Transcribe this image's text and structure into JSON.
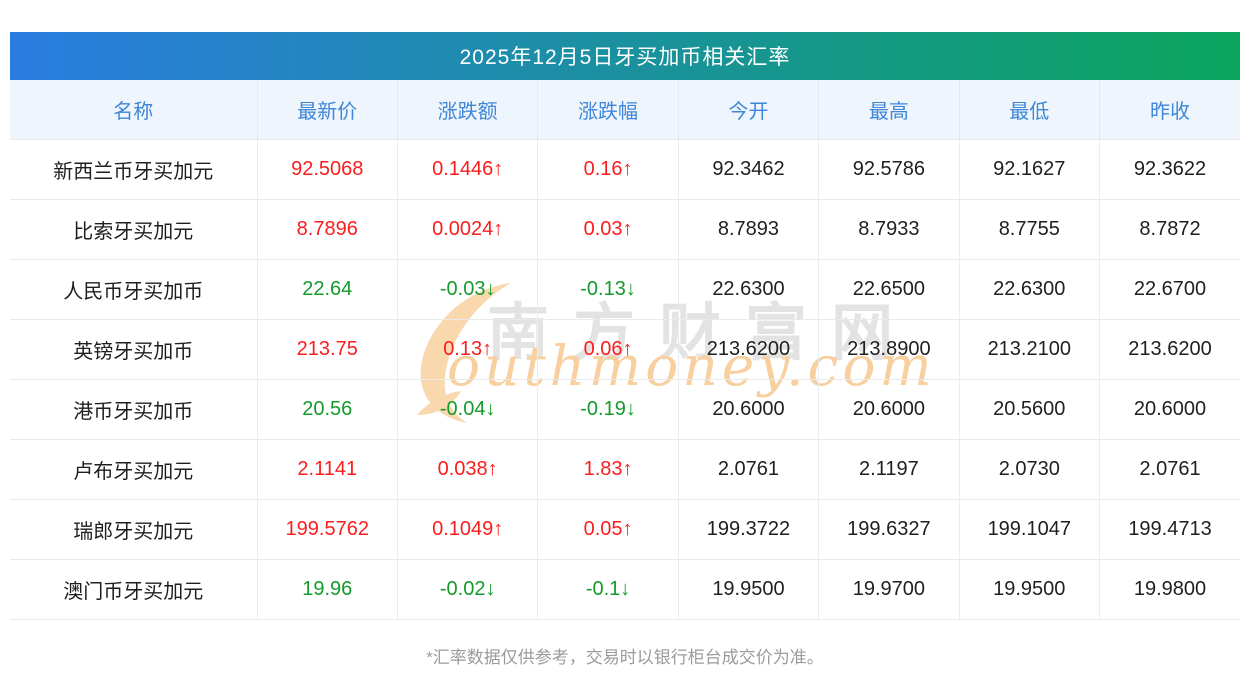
{
  "page": {
    "title": "2025年12月5日牙买加币相关汇率",
    "footnote": "*汇率数据仅供参考，交易时以银行柜台成交价为准。"
  },
  "watermark": {
    "brand_cn": "南方财富网",
    "brand_en": "outhmoney.com",
    "icon": "southmoney-s-swoosh"
  },
  "colors": {
    "up": "#fa1d1d",
    "down": "#149b2b",
    "header_text": "#3e87d8",
    "header_bg": "#eff5fc",
    "title_gradient_left": "#2b7ce1",
    "title_gradient_right": "#0aa55c",
    "watermark_orange": "#f8d8ac",
    "watermark_gray": "#e3e3e3"
  },
  "chart_data": {
    "type": "table",
    "title": "2025年12月5日牙买加币相关汇率",
    "columns": [
      "名称",
      "最新价",
      "涨跌额",
      "涨跌幅",
      "今开",
      "最高",
      "最低",
      "昨收"
    ],
    "rows": [
      {
        "name": "新西兰币牙买加元",
        "dir": "up",
        "last": "92.5068",
        "change": "0.1446↑",
        "pct": "0.16↑",
        "open": "92.3462",
        "high": "92.5786",
        "low": "92.1627",
        "prev": "92.3622"
      },
      {
        "name": "比索牙买加元",
        "dir": "up",
        "last": "8.7896",
        "change": "0.0024↑",
        "pct": "0.03↑",
        "open": "8.7893",
        "high": "8.7933",
        "low": "8.7755",
        "prev": "8.7872"
      },
      {
        "name": "人民币牙买加币",
        "dir": "down",
        "last": "22.64",
        "change": "-0.03↓",
        "pct": "-0.13↓",
        "open": "22.6300",
        "high": "22.6500",
        "low": "22.6300",
        "prev": "22.6700"
      },
      {
        "name": "英镑牙买加币",
        "dir": "up",
        "last": "213.75",
        "change": "0.13↑",
        "pct": "0.06↑",
        "open": "213.6200",
        "high": "213.8900",
        "low": "213.2100",
        "prev": "213.6200"
      },
      {
        "name": "港币牙买加币",
        "dir": "down",
        "last": "20.56",
        "change": "-0.04↓",
        "pct": "-0.19↓",
        "open": "20.6000",
        "high": "20.6000",
        "low": "20.5600",
        "prev": "20.6000"
      },
      {
        "name": "卢布牙买加元",
        "dir": "up",
        "last": "2.1141",
        "change": "0.038↑",
        "pct": "1.83↑",
        "open": "2.0761",
        "high": "2.1197",
        "low": "2.0730",
        "prev": "2.0761"
      },
      {
        "name": "瑞郎牙买加元",
        "dir": "up",
        "last": "199.5762",
        "change": "0.1049↑",
        "pct": "0.05↑",
        "open": "199.3722",
        "high": "199.6327",
        "low": "199.1047",
        "prev": "199.4713"
      },
      {
        "name": "澳门币牙买加元",
        "dir": "down",
        "last": "19.96",
        "change": "-0.02↓",
        "pct": "-0.1↓",
        "open": "19.9500",
        "high": "19.9700",
        "low": "19.9500",
        "prev": "19.9800"
      }
    ]
  }
}
